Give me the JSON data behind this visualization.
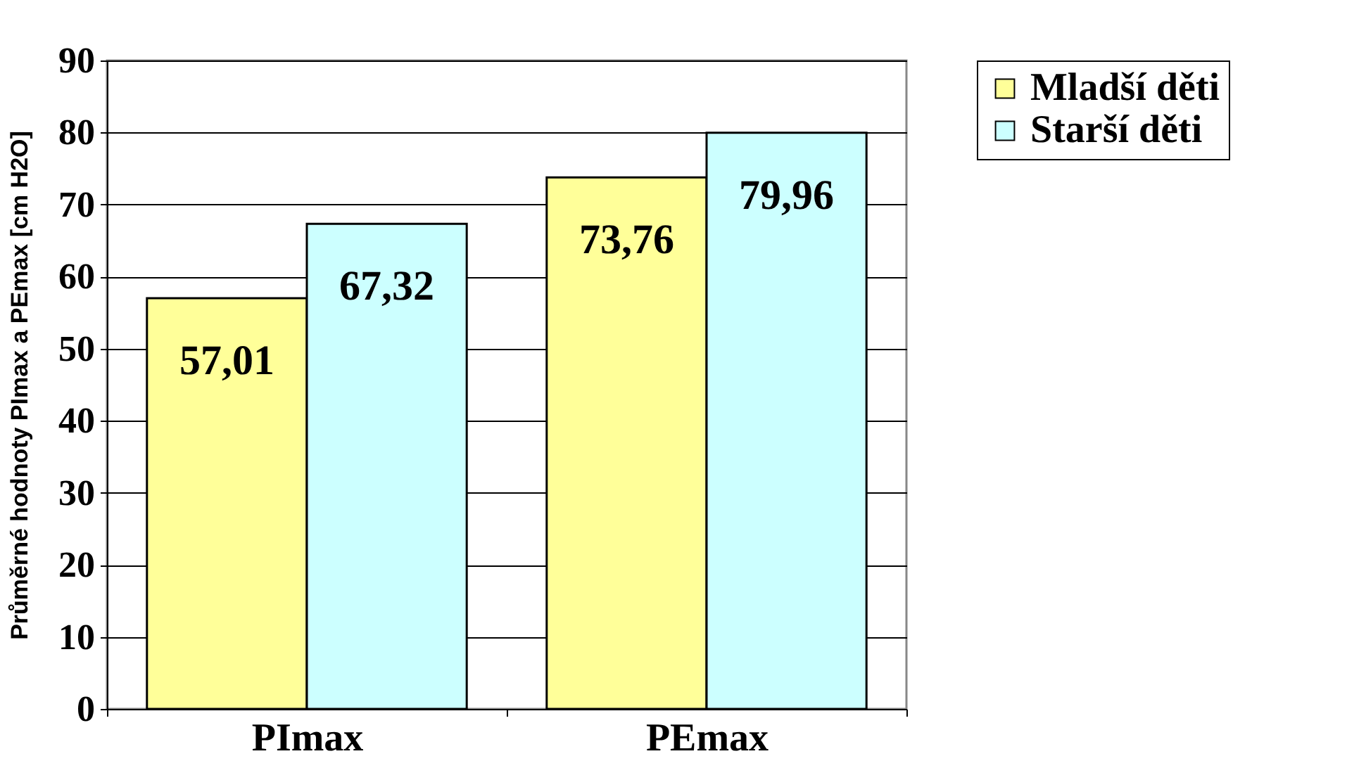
{
  "chart_data": {
    "type": "bar",
    "ylabel": "Průměrné hodnoty PImax a PEmax [cm H2O]",
    "categories": [
      "PImax",
      "PEmax"
    ],
    "series": [
      {
        "name": "Mladší děti",
        "color": "#ffff99",
        "values": [
          57.01,
          73.76
        ],
        "value_labels": [
          "57,01",
          "73,76"
        ]
      },
      {
        "name": "Starší děti",
        "color": "#ccffff",
        "values": [
          67.32,
          79.96
        ],
        "value_labels": [
          "67,32",
          "79,96"
        ]
      }
    ],
    "ylim": [
      0,
      90
    ],
    "yticks": [
      0,
      10,
      20,
      30,
      40,
      50,
      60,
      70,
      80,
      90
    ],
    "grid": "y",
    "legend": "right"
  }
}
